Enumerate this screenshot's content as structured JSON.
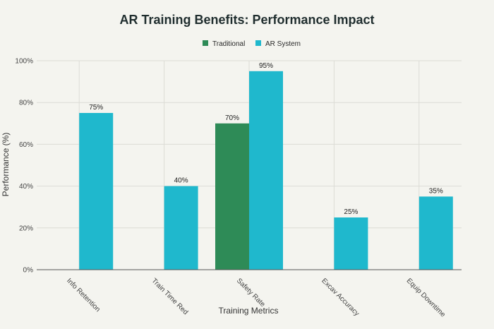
{
  "chart_data": {
    "type": "bar",
    "title": "AR Training Benefits: Performance Impact",
    "xlabel": "Training Metrics",
    "ylabel": "Performance (%)",
    "categories": [
      "Info Retention",
      "Train Time Red",
      "Safety Rate",
      "Excav Accuracy",
      "Equip Downtime"
    ],
    "series": [
      {
        "name": "Traditional",
        "color": "#2e8b57",
        "values": [
          null,
          null,
          70,
          null,
          null
        ]
      },
      {
        "name": "AR System",
        "color": "#1fb8cd",
        "values": [
          75,
          40,
          95,
          25,
          35
        ]
      }
    ],
    "ylim": [
      0,
      100
    ],
    "yticks": [
      0,
      20,
      40,
      60,
      80,
      100
    ],
    "ytick_format": "{v}%",
    "grid": true,
    "legend_position": "top-center"
  }
}
